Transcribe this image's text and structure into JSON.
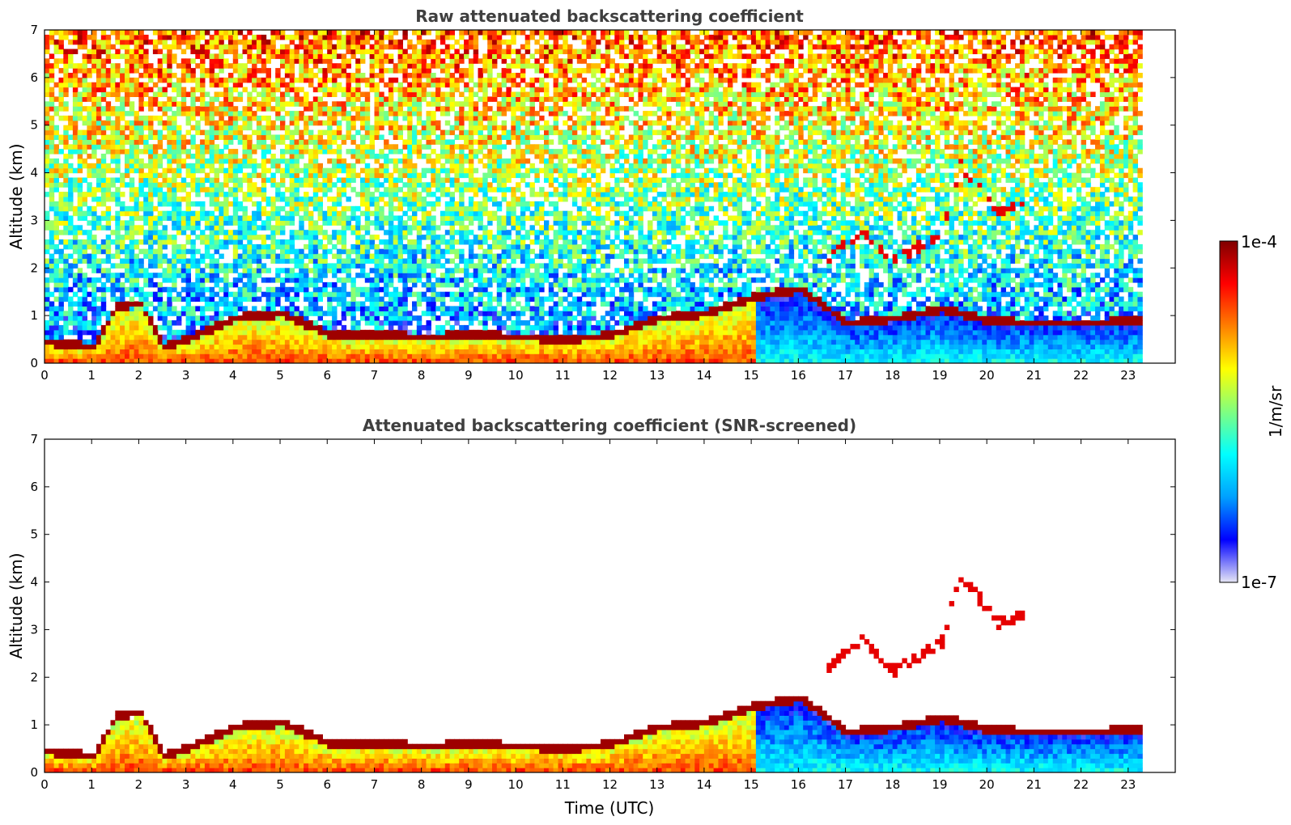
{
  "chart_data": [
    {
      "type": "heatmap",
      "title": "Raw attenuated backscattering coefficient",
      "xlabel": "",
      "ylabel": "Altitude (km)",
      "xlim": [
        0,
        24
      ],
      "ylim": [
        0,
        7
      ],
      "xticks": [
        "0",
        "1",
        "2",
        "3",
        "4",
        "5",
        "6",
        "7",
        "8",
        "9",
        "10",
        "11",
        "12",
        "13",
        "14",
        "15",
        "16",
        "17",
        "18",
        "19",
        "20",
        "21",
        "22",
        "23"
      ],
      "yticks": [
        "0",
        "1",
        "2",
        "3",
        "4",
        "5",
        "6",
        "7"
      ],
      "data_end_time": 23.3,
      "snr_screened": false,
      "layers": [
        {
          "name": "boundary-layer top",
          "time": [
            0,
            0.5,
            1,
            1.5,
            2,
            2.5,
            3,
            4,
            5,
            6,
            7,
            8,
            9,
            10,
            11,
            12,
            13,
            14,
            15,
            16,
            17,
            18,
            19,
            20,
            21,
            22,
            23.3
          ],
          "altitude": [
            0.4,
            0.35,
            0.3,
            1.15,
            1.2,
            0.3,
            0.45,
            0.9,
            1.0,
            0.55,
            0.55,
            0.5,
            0.55,
            0.5,
            0.45,
            0.55,
            0.9,
            1.0,
            1.35,
            1.5,
            0.8,
            0.9,
            1.1,
            0.85,
            0.8,
            0.8,
            0.85
          ]
        },
        {
          "name": "elevated cloud",
          "time": [
            16.5,
            17.3,
            18.0,
            18.3,
            19.0,
            19.4,
            20.2,
            20.8
          ],
          "altitude": [
            2.1,
            2.7,
            2.1,
            2.3,
            2.7,
            4.1,
            3.1,
            3.3
          ]
        }
      ]
    },
    {
      "type": "heatmap",
      "title": "Attenuated backscattering coefficient (SNR-screened)",
      "xlabel": "Time (UTC)",
      "ylabel": "Altitude (km)",
      "xlim": [
        0,
        24
      ],
      "ylim": [
        0,
        7
      ],
      "xticks": [
        "0",
        "1",
        "2",
        "3",
        "4",
        "5",
        "6",
        "7",
        "8",
        "9",
        "10",
        "11",
        "12",
        "13",
        "14",
        "15",
        "16",
        "17",
        "18",
        "19",
        "20",
        "21",
        "22",
        "23"
      ],
      "yticks": [
        "0",
        "1",
        "2",
        "3",
        "4",
        "5",
        "6",
        "7"
      ],
      "data_end_time": 23.3,
      "snr_screened": true
    }
  ],
  "colorbar": {
    "label": "1/m/sr",
    "max_label": "1e-4",
    "min_label": "1e-7",
    "scale": "log",
    "colormap": [
      "#e6e6f5",
      "#0000ff",
      "#00a0ff",
      "#00ffff",
      "#80ff80",
      "#ffff00",
      "#ff8000",
      "#ff0000",
      "#800000"
    ]
  }
}
